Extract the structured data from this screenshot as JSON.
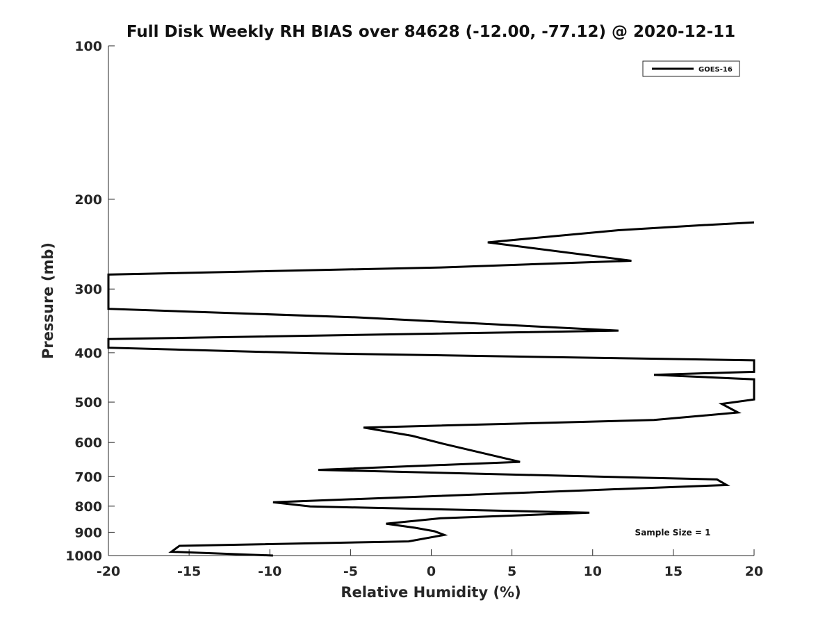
{
  "chart_data": {
    "type": "line",
    "title": "Full Disk Weekly RH BIAS over 84628 (-12.00, -77.12) @ 2020-12-11",
    "xlabel": "Relative Humidity (%)",
    "ylabel": "Pressure (mb)",
    "xlim": [
      -20,
      20
    ],
    "ylim": [
      100,
      1000
    ],
    "y_scale": "log",
    "y_reversed": true,
    "grid": false,
    "x_ticks": [
      -20,
      -15,
      -10,
      -5,
      0,
      5,
      10,
      15,
      20
    ],
    "x_tick_labels": [
      "-20",
      "-15",
      "-10",
      "-5",
      "0",
      "5",
      "10",
      "15",
      "20"
    ],
    "y_ticks": [
      100,
      200,
      300,
      400,
      500,
      600,
      700,
      800,
      900,
      1000
    ],
    "y_tick_labels": [
      "100",
      "200",
      "300",
      "400",
      "500",
      "600",
      "700",
      "800",
      "900",
      "1000"
    ],
    "legend": {
      "position": "top-right",
      "entries": [
        "GOES-16"
      ]
    },
    "annotation": "Sample Size = 1",
    "series": [
      {
        "name": "GOES-16",
        "color": "#000000",
        "points": [
          {
            "x": -9.8,
            "p": 1000
          },
          {
            "x": -16.1,
            "p": 983
          },
          {
            "x": -15.6,
            "p": 957
          },
          {
            "x": -1.4,
            "p": 938
          },
          {
            "x": 0.8,
            "p": 911
          },
          {
            "x": 0.2,
            "p": 896
          },
          {
            "x": -1.0,
            "p": 882
          },
          {
            "x": -2.8,
            "p": 866
          },
          {
            "x": 0.6,
            "p": 845
          },
          {
            "x": 9.8,
            "p": 824
          },
          {
            "x": -7.5,
            "p": 801
          },
          {
            "x": -9.8,
            "p": 786
          },
          {
            "x": 10.0,
            "p": 744
          },
          {
            "x": 18.3,
            "p": 727
          },
          {
            "x": 17.7,
            "p": 709
          },
          {
            "x": -7.0,
            "p": 679
          },
          {
            "x": 5.5,
            "p": 655
          },
          {
            "x": 0.7,
            "p": 603
          },
          {
            "x": -1.2,
            "p": 582
          },
          {
            "x": -4.2,
            "p": 561
          },
          {
            "x": 13.8,
            "p": 542
          },
          {
            "x": 19.0,
            "p": 524
          },
          {
            "x": 18.0,
            "p": 504
          },
          {
            "x": 20.0,
            "p": 494
          },
          {
            "x": 20.0,
            "p": 451
          },
          {
            "x": 13.8,
            "p": 442
          },
          {
            "x": 20.0,
            "p": 436
          },
          {
            "x": 20.0,
            "p": 414
          },
          {
            "x": -7.3,
            "p": 401
          },
          {
            "x": -20.0,
            "p": 391
          },
          {
            "x": -20.0,
            "p": 376
          },
          {
            "x": 11.6,
            "p": 362
          },
          {
            "x": -4.6,
            "p": 341
          },
          {
            "x": -20.0,
            "p": 328
          },
          {
            "x": -20.0,
            "p": 281
          },
          {
            "x": 0.8,
            "p": 272
          },
          {
            "x": 12.4,
            "p": 264
          },
          {
            "x": 3.5,
            "p": 243
          },
          {
            "x": 11.6,
            "p": 230
          },
          {
            "x": 16.6,
            "p": 225
          },
          {
            "x": 20.0,
            "p": 222
          }
        ]
      }
    ]
  }
}
